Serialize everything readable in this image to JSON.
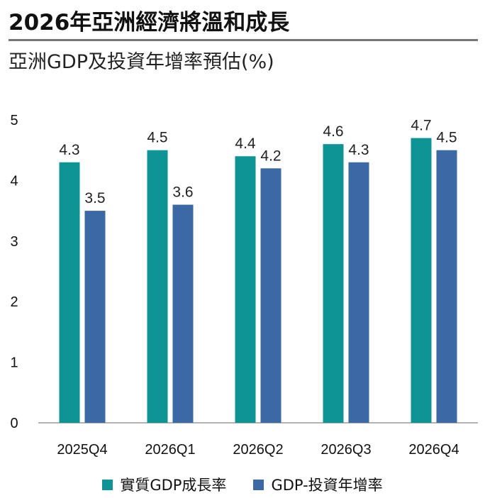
{
  "header": {
    "title": "2026年亞洲經濟將溫和成長",
    "subtitle": "亞洲GDP及投資年增率預估(%)"
  },
  "colors": {
    "series1": "#0e9494",
    "series2": "#3b69a3",
    "axis": "#999999",
    "rule": "#777777"
  },
  "chart_data": {
    "type": "bar",
    "title": "亞洲GDP及投資年增率預估(%)",
    "xlabel": "",
    "ylabel": "",
    "ylim": [
      0,
      5
    ],
    "yticks": [
      "0",
      "1",
      "2",
      "3",
      "4",
      "5"
    ],
    "categories": [
      "2025Q4",
      "2026Q1",
      "2026Q2",
      "2026Q3",
      "2026Q4"
    ],
    "series": [
      {
        "name": "實質GDP成長率",
        "values": [
          4.3,
          4.5,
          4.4,
          4.6,
          4.7
        ],
        "labels": [
          "4.3",
          "4.5",
          "4.4",
          "4.6",
          "4.7"
        ]
      },
      {
        "name": "GDP-投資年增率",
        "values": [
          3.5,
          3.6,
          4.2,
          4.3,
          4.5
        ],
        "labels": [
          "3.5",
          "3.6",
          "4.2",
          "4.3",
          "4.5"
        ]
      }
    ],
    "grid": false,
    "legend_position": "bottom"
  }
}
